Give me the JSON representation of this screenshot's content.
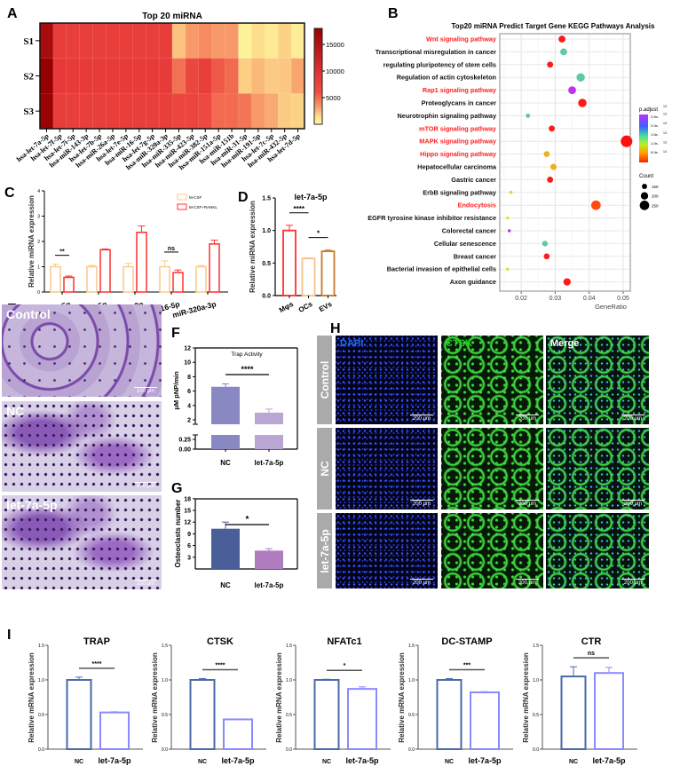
{
  "chart_data": [
    {
      "panel": "A",
      "type": "heatmap",
      "title": "Top 20 miRNA",
      "rows": [
        "S1",
        "S2",
        "S3"
      ],
      "columns": [
        "hsa-let-7a-5p",
        "hsa-let-7f-5p",
        "hsa-let-7i-5p",
        "hsa-miR-143-3p",
        "hsa-let-7b-5p",
        "hsa-miR-26a-5p",
        "hsa-let-7e-5p",
        "hsa-miR-16-5p",
        "hsa-let-7g-5p",
        "hsa-miR-320a-3p",
        "hsa-miR-335-5p",
        "hsa-miR-423-5p",
        "hsa-miR-382-5p",
        "hsa-miR-151a-5p",
        "hsa-miR-151b",
        "hsa-miR-31-5p",
        "hsa-miR-191-5p",
        "hsa-let-7c-5p",
        "hsa-miR-432-5p",
        "hsa-let-7d-5p"
      ],
      "values": [
        [
          16000,
          8200,
          8000,
          8000,
          8000,
          8000,
          8000,
          8000,
          8000,
          8200,
          2200,
          3400,
          3900,
          3400,
          3400,
          400,
          1500,
          900,
          1800,
          700
        ],
        [
          18000,
          8800,
          8600,
          8600,
          8600,
          8600,
          8600,
          8600,
          8600,
          8600,
          4800,
          7000,
          8000,
          5600,
          5000,
          1900,
          2500,
          2000,
          2100,
          3000
        ],
        [
          17500,
          8200,
          8000,
          8000,
          8000,
          8000,
          8000,
          8000,
          8000,
          8000,
          7200,
          7200,
          6600,
          5000,
          5000,
          4600,
          3400,
          2900,
          2000,
          1800
        ]
      ],
      "range": [
        0,
        18000
      ],
      "colorbar_ticks": [
        "15000",
        "10000",
        "5000"
      ],
      "colorbar_tick_values": [
        15000,
        10000,
        5000
      ]
    },
    {
      "panel": "B",
      "type": "scatter",
      "title": "Top20 miRNA Predict Target Gene KEGG Pathways Analysis",
      "xlabel": "GeneRatio",
      "xticks": [
        "0.02",
        "0.03",
        "0.04",
        "0.05"
      ],
      "xtick_values": [
        0.02,
        0.03,
        0.04,
        0.05
      ],
      "xlim": [
        0.0137,
        0.0521
      ],
      "points": [
        {
          "pathway": "Wnt signaling pathway",
          "highlight": true,
          "gene_ratio": 0.032,
          "count": 190,
          "color": "#ff1a1a"
        },
        {
          "pathway": "Transcriptional misregulation in cancer",
          "highlight": false,
          "gene_ratio": 0.0325,
          "count": 190,
          "color": "#5ec8a8"
        },
        {
          "pathway": "regulating pluripotency of stem cells",
          "highlight": false,
          "gene_ratio": 0.0285,
          "count": 170,
          "color": "#ff1a1a"
        },
        {
          "pathway": "Regulation of actin cytoskeleton",
          "highlight": false,
          "gene_ratio": 0.0375,
          "count": 225,
          "color": "#5ec8a8"
        },
        {
          "pathway": "Rap1 signaling pathway",
          "highlight": true,
          "gene_ratio": 0.035,
          "count": 210,
          "color": "#c030f0"
        },
        {
          "pathway": "Proteoglycans in cancer",
          "highlight": false,
          "gene_ratio": 0.038,
          "count": 225,
          "color": "#ff1a1a"
        },
        {
          "pathway": "Neurotrophin signaling pathway",
          "highlight": false,
          "gene_ratio": 0.022,
          "count": 130,
          "color": "#5ec8a8"
        },
        {
          "pathway": "mTOR signaling pathway",
          "highlight": true,
          "gene_ratio": 0.029,
          "count": 170,
          "color": "#ff1a1a"
        },
        {
          "pathway": "MAPK signaling pathway",
          "highlight": true,
          "gene_ratio": 0.051,
          "count": 300,
          "color": "#ff1010"
        },
        {
          "pathway": "Hippo signaling pathway",
          "highlight": true,
          "gene_ratio": 0.0275,
          "count": 165,
          "color": "#f0b020"
        },
        {
          "pathway": "Hepatocellular carcinoma",
          "highlight": false,
          "gene_ratio": 0.0295,
          "count": 175,
          "color": "#f0b020"
        },
        {
          "pathway": "Gastric cancer",
          "highlight": false,
          "gene_ratio": 0.0285,
          "count": 170,
          "color": "#ff1a1a"
        },
        {
          "pathway": "ErbB signaling pathway",
          "highlight": false,
          "gene_ratio": 0.017,
          "count": 100,
          "color": "#e0d020"
        },
        {
          "pathway": "Endocytosis",
          "highlight": true,
          "gene_ratio": 0.042,
          "count": 250,
          "color": "#ff4a10"
        },
        {
          "pathway": "EGFR tyrosine kinase inhibitor resistance",
          "highlight": false,
          "gene_ratio": 0.016,
          "count": 95,
          "color": "#b8f020"
        },
        {
          "pathway": "Colorectal cancer",
          "highlight": false,
          "gene_ratio": 0.0165,
          "count": 100,
          "color": "#c030f0"
        },
        {
          "pathway": "Cellular senescence",
          "highlight": false,
          "gene_ratio": 0.027,
          "count": 160,
          "color": "#5ec8a8"
        },
        {
          "pathway": "Breast cancer",
          "highlight": false,
          "gene_ratio": 0.0275,
          "count": 165,
          "color": "#ff1a1a"
        },
        {
          "pathway": "Bacterial invasion of epithelial cells",
          "highlight": false,
          "gene_ratio": 0.016,
          "count": 95,
          "color": "#b8f020"
        },
        {
          "pathway": "Axon guidance",
          "highlight": false,
          "gene_ratio": 0.0335,
          "count": 200,
          "color": "#ff1a1a"
        }
      ],
      "legend": {
        "color_title": "p.adjust",
        "color_labels": [
          {
            "mantissa": "2.5e-",
            "exp": "13"
          },
          {
            "mantissa": "2.0e-",
            "exp": "13"
          },
          {
            "mantissa": "1.5e-",
            "exp": "13"
          },
          {
            "mantissa": "1.0e-",
            "exp": "13"
          },
          {
            "mantissa": "5.0e-",
            "exp": "14"
          }
        ],
        "color_top_exp": "13",
        "size_title": "Count",
        "size_labels": [
          "150",
          "200",
          "250"
        ],
        "size_values": [
          150,
          200,
          250
        ]
      }
    },
    {
      "panel": "C",
      "type": "bar",
      "categories": [
        "let-7a-5p",
        "miR-26a-5p",
        "miR-143-3p",
        "miR-16-5p",
        "miR-320a-3p"
      ],
      "ylabel": "Relative miRNA expression",
      "ylim": [
        0,
        4
      ],
      "yticks": [
        "0",
        "1",
        "2",
        "3",
        "4"
      ],
      "series": [
        {
          "name": "M-CSF",
          "values": [
            1.0,
            1.0,
            1.0,
            1.0,
            1.0
          ],
          "errors": [
            0.1,
            0.05,
            0.13,
            0.23,
            0.05
          ],
          "color": "#f9c98a"
        },
        {
          "name": "M-CSF+RANKL",
          "values": [
            0.58,
            1.67,
            2.36,
            0.77,
            1.9
          ],
          "errors": [
            0.05,
            0.03,
            0.25,
            0.1,
            0.15
          ],
          "color": "#ff3030"
        }
      ],
      "significance": [
        {
          "group": 0,
          "label": "**"
        },
        {
          "group": 3,
          "label": "ns"
        }
      ]
    },
    {
      "panel": "D",
      "type": "bar",
      "title": "let-7a-5p",
      "categories": [
        "Mφs",
        "OCs",
        "EVs"
      ],
      "values": [
        1.0,
        0.57,
        0.68
      ],
      "errors": [
        0.08,
        0.01,
        0.02
      ],
      "colors": [
        "#ff3030",
        "#f7c08a",
        "#c8782a"
      ],
      "ylabel": "Relative miRNA expression",
      "ylim": [
        0,
        1.5
      ],
      "yticks": [
        "0.0",
        "0.5",
        "1.0",
        "1.5"
      ],
      "significance": [
        {
          "from": 0,
          "to": 1,
          "label": "****"
        },
        {
          "from": 1,
          "to": 2,
          "label": "*"
        }
      ]
    },
    {
      "panel": "F",
      "type": "bar",
      "title": "Trap Activity",
      "categories": [
        "NC",
        "let-7a-5p"
      ],
      "values": [
        6.6,
        3.0
      ],
      "errors": [
        0.4,
        0.5
      ],
      "colors": [
        "#8a88c2",
        "#b9a6d3"
      ],
      "ylabel": "μM pNP/min",
      "yticks_upper": [
        "2",
        "4",
        "6",
        "8",
        "10",
        "12"
      ],
      "yticks_upper_values": [
        2,
        4,
        6,
        8,
        10,
        12
      ],
      "yticks_lower": [
        "0.25",
        "0.00"
      ],
      "yticks_lower_values": [
        0.25,
        0
      ],
      "significance": [
        {
          "from": 0,
          "to": 1,
          "label": "****"
        }
      ]
    },
    {
      "panel": "G",
      "type": "bar",
      "categories": [
        "NC",
        "let-7a-5p"
      ],
      "values": [
        10.3,
        4.7
      ],
      "errors": [
        1.7,
        0.5
      ],
      "colors": [
        "#4a5f9a",
        "#b07cc0"
      ],
      "ylabel": "Osteoclasts number",
      "ylim": [
        0,
        18
      ],
      "yticks": [
        "3",
        "6",
        "9",
        "12",
        "15",
        "18"
      ],
      "ytick_values": [
        3,
        6,
        9,
        12,
        15,
        18
      ],
      "significance": [
        {
          "from": 0,
          "to": 1,
          "label": "*"
        }
      ]
    },
    {
      "panel": "I",
      "type": "bar",
      "categories": [
        "NC",
        "let-7a-5p"
      ],
      "colors": [
        "#4a6aa8",
        "#8a8aff"
      ],
      "ylabel": "Relative mRNA expression",
      "ylim": [
        0,
        1.5
      ],
      "yticks": [
        "0.0",
        "0.5",
        "1.0",
        "1.5"
      ],
      "subplots": [
        {
          "title": "TRAP",
          "values": [
            1.0,
            0.53
          ],
          "errors": [
            0.04,
            0.01
          ],
          "sig": "****"
        },
        {
          "title": "CTSK",
          "values": [
            1.0,
            0.43
          ],
          "errors": [
            0.02,
            0.005
          ],
          "sig": "****"
        },
        {
          "title": "NFATc1",
          "values": [
            1.0,
            0.87
          ],
          "errors": [
            0.01,
            0.03
          ],
          "sig": "*"
        },
        {
          "title": "DC-STAMP",
          "values": [
            1.0,
            0.82
          ],
          "errors": [
            0.02,
            0.01
          ],
          "sig": "***"
        },
        {
          "title": "CTR",
          "values": [
            1.05,
            1.1
          ],
          "errors": [
            0.14,
            0.08
          ],
          "sig": "ns"
        }
      ]
    }
  ],
  "image_panels": {
    "E": {
      "panel": "E",
      "rows": [
        "Control",
        "NC",
        "let-7a-5p"
      ],
      "scale_bar": "100 μm"
    },
    "H": {
      "panel": "H",
      "rows": [
        "Control",
        "NC",
        "let-7a-5p"
      ],
      "channels": [
        "DAPI",
        "CTSK",
        "Merge"
      ],
      "channel_colors": [
        "#1a6cff",
        "#22d022",
        "#ffffff"
      ],
      "scale_bar": "200 μm"
    }
  }
}
